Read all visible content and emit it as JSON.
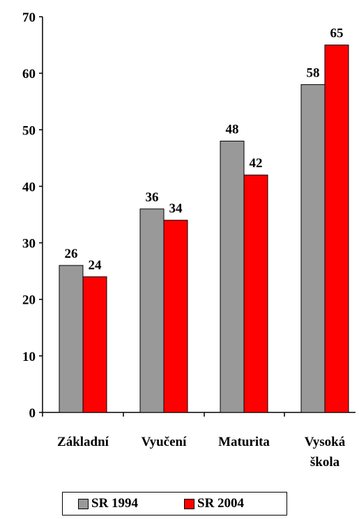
{
  "chart_data": {
    "type": "bar",
    "categories": [
      [
        "Základní"
      ],
      [
        "Vyučení"
      ],
      [
        "Maturita"
      ],
      [
        "Vysoká",
        "škola"
      ]
    ],
    "series": [
      {
        "name": "SR 1994",
        "color": "#999999",
        "values": [
          26,
          36,
          48,
          58
        ]
      },
      {
        "name": "SR 2004",
        "color": "#ff0000",
        "values": [
          24,
          34,
          42,
          65
        ]
      }
    ],
    "yticks": [
      0,
      10,
      20,
      30,
      40,
      50,
      60,
      70
    ],
    "ylim": [
      0,
      70
    ],
    "legend_position": "bottom",
    "grid": false
  }
}
